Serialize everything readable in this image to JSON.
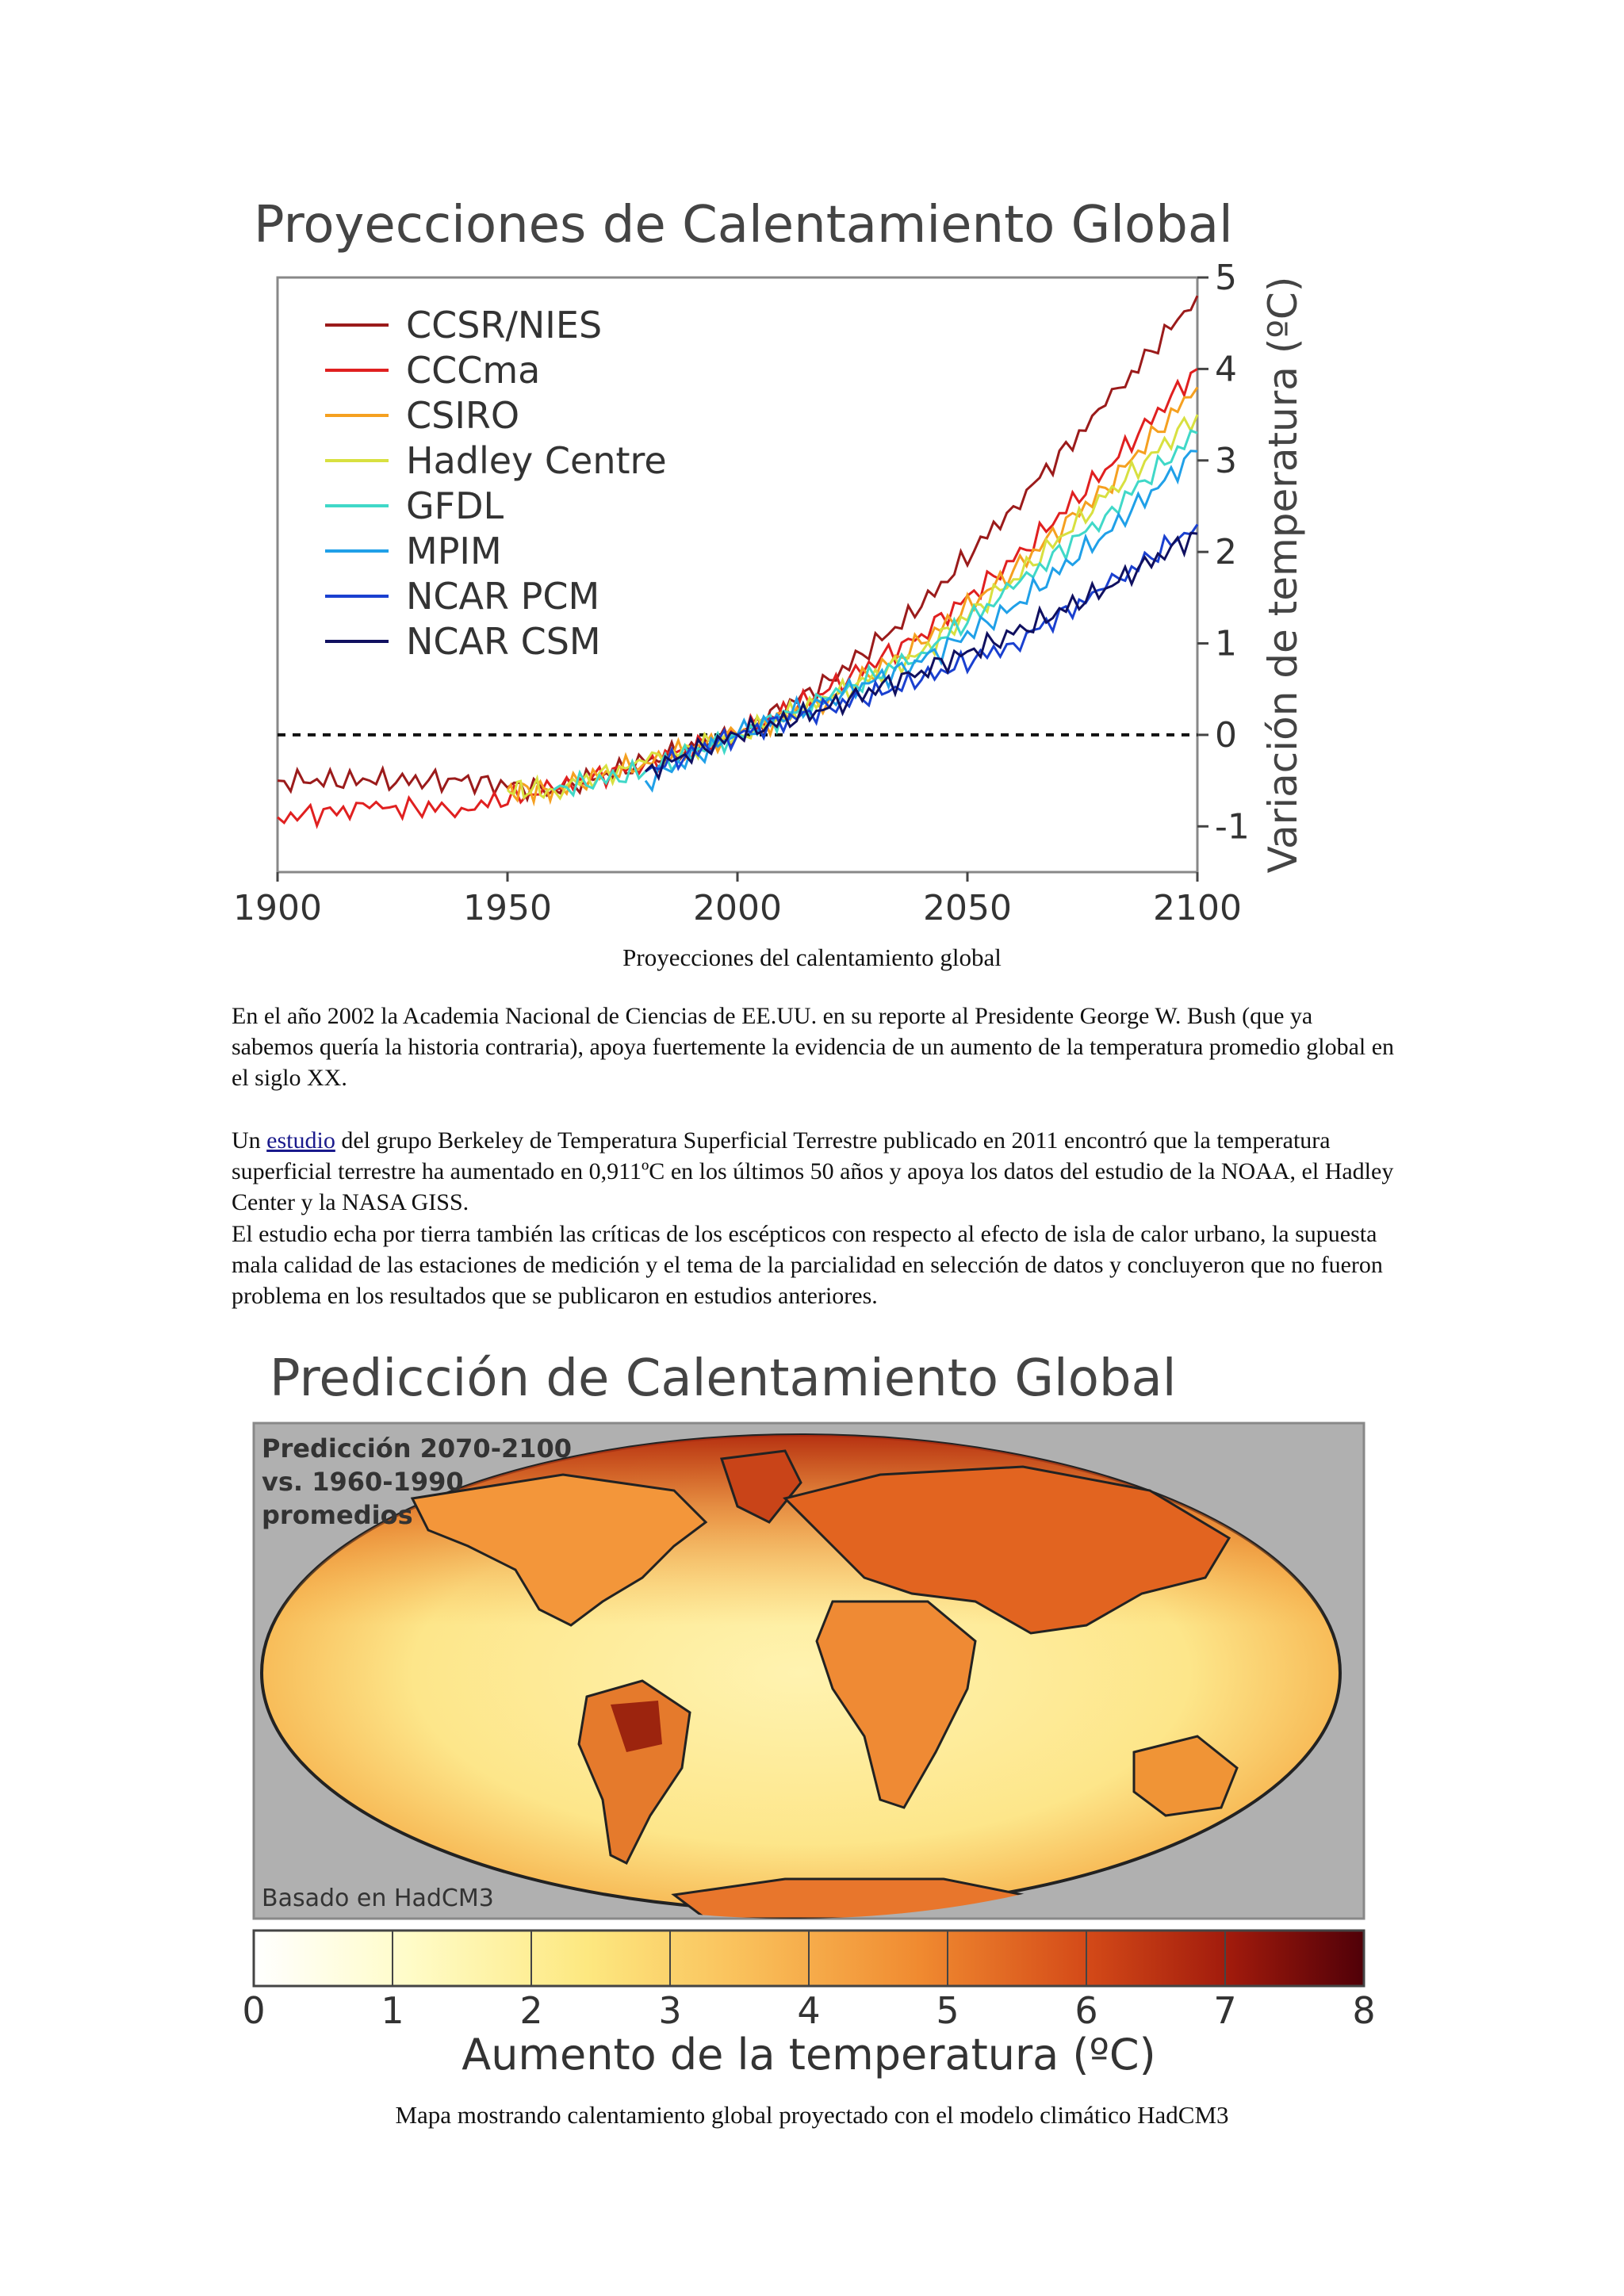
{
  "figure1": {
    "title": "Proyecciones de Calentamiento Global",
    "caption": "Proyecciones del calentamiento global"
  },
  "chart_data": {
    "type": "line",
    "title": "Proyecciones de Calentamiento Global",
    "xlabel": "",
    "ylabel": "Variación de temperatura (ºC)",
    "xlim": [
      1900,
      2100
    ],
    "ylim": [
      -1.5,
      5
    ],
    "x_ticks": [
      "1900",
      "1950",
      "2000",
      "2050",
      "2100"
    ],
    "y_ticks": [
      "-1",
      "0",
      "1",
      "2",
      "3",
      "4",
      "5"
    ],
    "legend_position": "top-left",
    "baseline": 0,
    "series": [
      {
        "name": "CCSR/NIES",
        "color": "#9b1b1b",
        "x": [
          1900,
          1920,
          1940,
          1960,
          1980,
          2000,
          2020,
          2040,
          2060,
          2080,
          2100
        ],
        "values": [
          -0.5,
          -0.5,
          -0.5,
          -0.6,
          -0.3,
          0.0,
          0.6,
          1.4,
          2.5,
          3.6,
          4.8
        ]
      },
      {
        "name": "CCCma",
        "color": "#e02020",
        "x": [
          1900,
          1920,
          1940,
          1960,
          1980,
          2000,
          2020,
          2040,
          2060,
          2080,
          2100
        ],
        "values": [
          -0.9,
          -0.8,
          -0.8,
          -0.6,
          -0.3,
          0.0,
          0.5,
          1.1,
          1.9,
          2.9,
          4.0
        ]
      },
      {
        "name": "CSIRO",
        "color": "#f5a020",
        "x": [
          1950,
          1960,
          1980,
          2000,
          2020,
          2040,
          2060,
          2080,
          2100
        ],
        "values": [
          -0.6,
          -0.6,
          -0.3,
          0.0,
          0.4,
          1.0,
          1.8,
          2.7,
          3.8
        ]
      },
      {
        "name": "Hadley Centre",
        "color": "#d8e040",
        "x": [
          1950,
          1960,
          1980,
          2000,
          2020,
          2040,
          2060,
          2080,
          2100
        ],
        "values": [
          -0.6,
          -0.6,
          -0.3,
          0.0,
          0.4,
          0.9,
          1.7,
          2.6,
          3.5
        ]
      },
      {
        "name": "GFDL",
        "color": "#40d8c8",
        "x": [
          1960,
          1980,
          2000,
          2020,
          2040,
          2060,
          2080,
          2100
        ],
        "values": [
          -0.6,
          -0.4,
          0.0,
          0.4,
          0.9,
          1.6,
          2.4,
          3.3
        ]
      },
      {
        "name": "MPIM",
        "color": "#20a0e8",
        "x": [
          1980,
          2000,
          2020,
          2040,
          2060,
          2080,
          2100
        ],
        "values": [
          -0.5,
          0.0,
          0.4,
          0.8,
          1.4,
          2.2,
          3.1
        ]
      },
      {
        "name": "NCAR PCM",
        "color": "#1a40d0",
        "x": [
          1980,
          2000,
          2020,
          2040,
          2060,
          2080,
          2100
        ],
        "values": [
          -0.4,
          0.0,
          0.3,
          0.6,
          1.0,
          1.6,
          2.3
        ]
      },
      {
        "name": "NCAR CSM",
        "color": "#101060",
        "x": [
          1980,
          2000,
          2020,
          2040,
          2060,
          2080,
          2100
        ],
        "values": [
          -0.4,
          0.0,
          0.3,
          0.7,
          1.1,
          1.6,
          2.2
        ]
      }
    ]
  },
  "paragraphs": {
    "p1": "En el año 2002 la Academia Nacional de Ciencias de EE.UU. en su reporte al Presidente George W. Bush (que ya sabemos quería la historia contraria), apoya fuertemente la evidencia de un aumento de la temperatura promedio global en el siglo XX.",
    "p2_prefix": "Un ",
    "p2_link": "estudio",
    "p2_rest": " del grupo Berkeley de Temperatura Superficial Terrestre publicado en 2011 encontró que la temperatura superficial terrestre ha aumentado en 0,911ºC en los últimos 50 años y apoya los datos del estudio de la NOAA, el Hadley Center y la NASA GISS.",
    "p3": "El estudio echa por tierra también las críticas de los escépticos con respecto al efecto de isla de calor urbano, la supuesta mala calidad de las estaciones de medición y el tema de la parcialidad en selección de datos y concluyeron que no fueron problema en los resultados que se publicaron en estudios anteriores."
  },
  "figure2": {
    "title": "Predicción de Calentamiento Global",
    "inset_line1": "Predicción 2070-2100",
    "inset_line2": "vs. 1960-1990",
    "inset_line3": "promedios",
    "source_note": "Basado en HadCM3",
    "colorbar_ticks": [
      "0",
      "1",
      "2",
      "3",
      "4",
      "5",
      "6",
      "7",
      "8"
    ],
    "colorbar_label": "Aumento de la temperatura (ºC)",
    "caption": "Mapa mostrando calentamiento global proyectado con el modelo climático HadCM3"
  }
}
